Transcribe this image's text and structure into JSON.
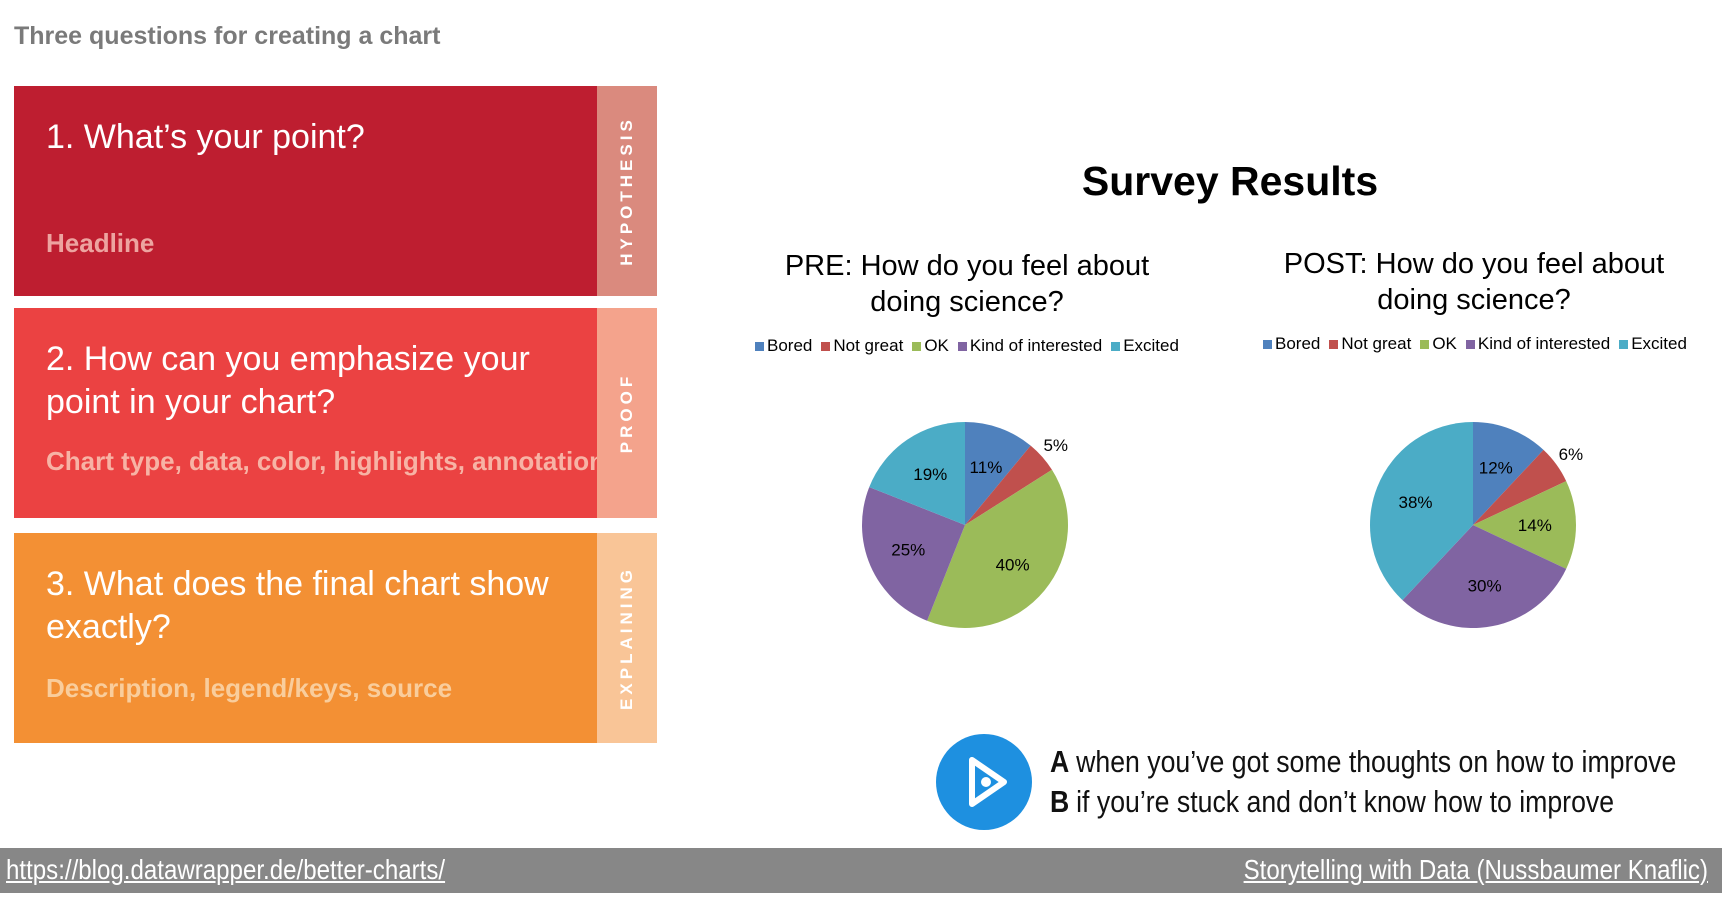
{
  "page_title": "Three questions for creating a chart",
  "questions": [
    {
      "question": "1. What’s your point?",
      "sub": "Headline",
      "tag": "HYPOTHESIS"
    },
    {
      "question": "2. How can you emphasize your point in your chart?",
      "sub": "Chart type, data, color, highlights, annotations",
      "tag": "PROOF"
    },
    {
      "question": "3. What does the final chart show exactly?",
      "sub": "Description, legend/keys, source",
      "tag": "EXPLAINING"
    }
  ],
  "survey": {
    "title": "Survey Results"
  },
  "colors": {
    "Bored": "#4f81bd",
    "Not great": "#c0504d",
    "OK": "#9bbb59",
    "Kind of interested": "#8064a2",
    "Excited": "#4bacc6"
  },
  "chart_data": [
    {
      "type": "pie",
      "title": "PRE: How do you feel about doing science?",
      "categories": [
        "Bored",
        "Not great",
        "OK",
        "Kind of interested",
        "Excited"
      ],
      "values": [
        11,
        5,
        40,
        25,
        19
      ],
      "labels": [
        "11%",
        "5%",
        "40%",
        "25%",
        "19%"
      ],
      "legend": "top"
    },
    {
      "type": "pie",
      "title": "POST: How do you feel about doing science?",
      "categories": [
        "Bored",
        "Not great",
        "OK",
        "Kind of interested",
        "Excited"
      ],
      "values": [
        12,
        6,
        14,
        30,
        38
      ],
      "labels": [
        "12%",
        "6%",
        "14%",
        "30%",
        "38%"
      ],
      "legend": "top"
    }
  ],
  "prompt": {
    "a_key": "A",
    "a_text": "when you’ve got some thoughts on how to improve",
    "b_key": "B",
    "b_text": "if you’re stuck and don’t know how to improve"
  },
  "footer": {
    "left_link": "https://blog.datawrapper.de/better-charts/",
    "right_link": "Storytelling with Data (Nussbaumer Knaflic)"
  }
}
